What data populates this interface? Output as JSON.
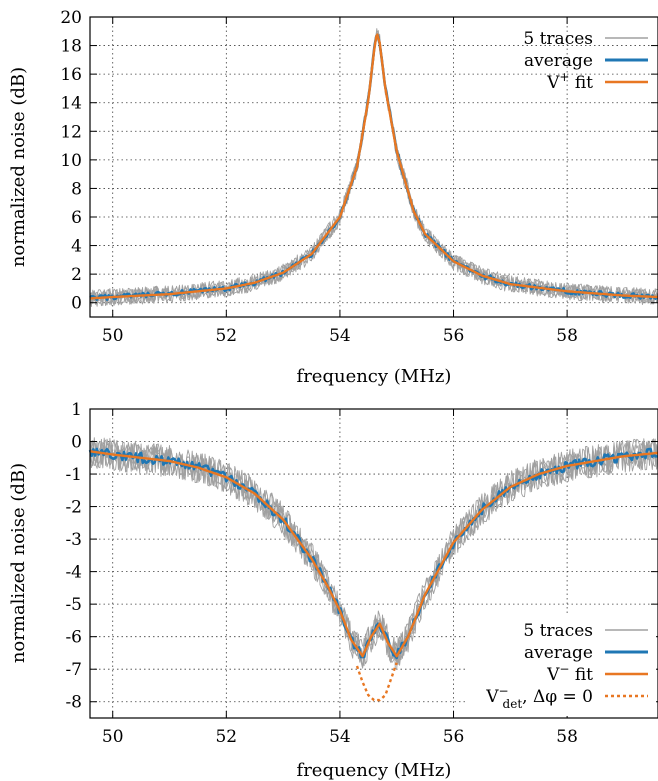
{
  "colors": {
    "traces": "#a0a0a0",
    "average": "#1f77b4",
    "fit": "#e87722"
  },
  "chart_data": [
    {
      "type": "line",
      "xlabel": "frequency (MHz)",
      "ylabel": "normalized noise (dB)",
      "xlim": [
        49.6,
        59.6
      ],
      "ylim": [
        -1,
        20
      ],
      "xticks": [
        "50",
        "52",
        "54",
        "56",
        "58"
      ],
      "yticks": [
        "0",
        "2",
        "4",
        "6",
        "8",
        "10",
        "12",
        "14",
        "16",
        "18",
        "20"
      ],
      "grid": true,
      "legend_position": "top-right",
      "legend": {
        "traces": "5 traces",
        "average": "average",
        "fit_main": "V",
        "fit_sup": "+",
        "fit_rest": " fit"
      },
      "series": [
        {
          "name": "5 traces",
          "style": "thin-gray",
          "noise_db": 0.6
        },
        {
          "name": "average",
          "style": "blue",
          "x": [
            49.6,
            50.0,
            51.0,
            52.0,
            52.5,
            53.0,
            53.5,
            54.0,
            54.3,
            54.5,
            54.6,
            54.65,
            54.7,
            54.8,
            55.0,
            55.3,
            55.5,
            56.0,
            56.5,
            57.0,
            58.0,
            59.0,
            59.6
          ],
          "values": [
            0.3,
            0.4,
            0.6,
            1.0,
            1.4,
            2.1,
            3.4,
            6.0,
            9.5,
            14.2,
            17.6,
            18.9,
            18.2,
            15.0,
            10.6,
            6.4,
            4.8,
            2.9,
            1.9,
            1.3,
            0.8,
            0.5,
            0.4
          ]
        },
        {
          "name": "V+ fit",
          "style": "orange",
          "x": [
            49.6,
            50.0,
            51.0,
            52.0,
            52.5,
            53.0,
            53.5,
            54.0,
            54.3,
            54.5,
            54.6,
            54.65,
            54.7,
            54.8,
            55.0,
            55.3,
            55.5,
            56.0,
            56.5,
            57.0,
            58.0,
            59.0,
            59.6
          ],
          "values": [
            0.3,
            0.4,
            0.6,
            1.0,
            1.4,
            2.1,
            3.4,
            6.0,
            9.5,
            14.2,
            17.6,
            18.9,
            18.2,
            15.0,
            10.6,
            6.4,
            4.8,
            2.9,
            1.9,
            1.3,
            0.8,
            0.5,
            0.4
          ]
        }
      ]
    },
    {
      "type": "line",
      "xlabel": "frequency (MHz)",
      "ylabel": "normalized noise (dB)",
      "xlim": [
        49.6,
        59.6
      ],
      "ylim": [
        -8.5,
        1
      ],
      "xticks": [
        "50",
        "52",
        "54",
        "56",
        "58"
      ],
      "yticks": [
        "1",
        "0",
        "-1",
        "-2",
        "-3",
        "-4",
        "-5",
        "-6",
        "-7",
        "-8"
      ],
      "grid": true,
      "legend_position": "bottom-right",
      "legend": {
        "traces": "5 traces",
        "average": "average",
        "fit_main": "V",
        "fit_sup": "−",
        "fit_rest": " fit",
        "det_main": "V",
        "det_sup": "−",
        "det_sub": "det",
        "det_rest": ", Δφ = 0"
      },
      "series": [
        {
          "name": "5 traces",
          "style": "thin-gray",
          "noise_db": 0.5
        },
        {
          "name": "average",
          "style": "blue",
          "x": [
            49.6,
            50.0,
            51.0,
            51.5,
            52.0,
            52.5,
            53.0,
            53.5,
            53.8,
            54.0,
            54.2,
            54.4,
            54.55,
            54.7,
            54.85,
            55.0,
            55.2,
            55.5,
            56.0,
            56.5,
            57.0,
            57.5,
            58.0,
            59.0,
            59.6
          ],
          "values": [
            -0.3,
            -0.4,
            -0.6,
            -0.8,
            -1.1,
            -1.6,
            -2.4,
            -3.6,
            -4.5,
            -5.2,
            -6.1,
            -6.6,
            -6.0,
            -5.6,
            -6.2,
            -6.6,
            -6.0,
            -4.7,
            -3.1,
            -2.1,
            -1.4,
            -1.0,
            -0.75,
            -0.45,
            -0.35
          ]
        },
        {
          "name": "V− fit",
          "style": "orange",
          "x": [
            49.6,
            50.0,
            51.0,
            51.5,
            52.0,
            52.5,
            53.0,
            53.5,
            53.8,
            54.0,
            54.2,
            54.4,
            54.55,
            54.7,
            54.85,
            55.0,
            55.2,
            55.5,
            56.0,
            56.5,
            57.0,
            57.5,
            58.0,
            59.0,
            59.6
          ],
          "values": [
            -0.3,
            -0.4,
            -0.6,
            -0.8,
            -1.1,
            -1.6,
            -2.4,
            -3.6,
            -4.5,
            -5.2,
            -6.1,
            -6.6,
            -6.0,
            -5.6,
            -6.2,
            -6.6,
            -6.0,
            -4.7,
            -3.1,
            -2.1,
            -1.4,
            -1.0,
            -0.75,
            -0.45,
            -0.35
          ]
        },
        {
          "name": "V−det, Δφ = 0",
          "style": "orange-dashed",
          "x": [
            54.3,
            54.4,
            54.5,
            54.6,
            54.7,
            54.8,
            54.9,
            55.0
          ],
          "values": [
            -6.9,
            -7.4,
            -7.8,
            -7.95,
            -7.95,
            -7.8,
            -7.3,
            -6.8
          ]
        }
      ]
    }
  ]
}
